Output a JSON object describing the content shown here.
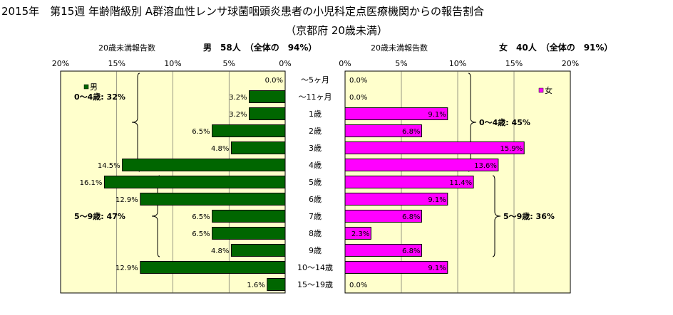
{
  "title": "2015年　第15週 年齢階級別 A群溶血性レンサ球菌咽頭炎患者の小児科定点医療機関からの報告割合",
  "subtitle": "（京都府 20歳未満）",
  "colors": {
    "male": "#006600",
    "female": "#ff00ff",
    "plot_bg": "#ffffcc"
  },
  "chart_data": [
    {
      "type": "bar",
      "orientation": "horizontal",
      "direction": "leftward",
      "xlabel": "20歳未満報告数",
      "summary_label": "男　58人　（全体の　94%）",
      "legend": "男",
      "legend_position": "top-left",
      "xlim": [
        0,
        20
      ],
      "ticks": [
        "0%",
        "5%",
        "10%",
        "15%",
        "20%"
      ],
      "tick_values": [
        0,
        5,
        10,
        15,
        20
      ],
      "categories": [
        "〜5ヶ月",
        "〜11ヶ月",
        "1歳",
        "2歳",
        "3歳",
        "4歳",
        "5歳",
        "6歳",
        "7歳",
        "8歳",
        "9歳",
        "10〜14歳",
        "15〜19歳"
      ],
      "series": [
        {
          "name": "男",
          "values": [
            0.0,
            3.2,
            3.2,
            6.5,
            4.8,
            14.5,
            16.1,
            12.9,
            6.5,
            6.5,
            4.8,
            12.9,
            1.6
          ]
        }
      ],
      "data_labels": [
        "0.0%",
        "3.2%",
        "3.2%",
        "6.5%",
        "4.8%",
        "14.5%",
        "16.1%",
        "12.9%",
        "6.5%",
        "6.5%",
        "4.8%",
        "12.9%",
        "1.6%"
      ],
      "annotations": [
        {
          "text": "0〜4歳: 32%",
          "from_category": "〜5ヶ月",
          "to_category": "4歳"
        },
        {
          "text": "5〜9歳: 47%",
          "from_category": "5歳",
          "to_category": "9歳"
        }
      ]
    },
    {
      "type": "bar",
      "orientation": "horizontal",
      "direction": "rightward",
      "xlabel": "20歳未満報告数",
      "summary_label": "女　40人　（全体の　91%）",
      "legend": "女",
      "legend_position": "top-right",
      "xlim": [
        0,
        20
      ],
      "ticks": [
        "0%",
        "5%",
        "10%",
        "15%",
        "20%"
      ],
      "tick_values": [
        0,
        5,
        10,
        15,
        20
      ],
      "categories": [
        "〜5ヶ月",
        "〜11ヶ月",
        "1歳",
        "2歳",
        "3歳",
        "4歳",
        "5歳",
        "6歳",
        "7歳",
        "8歳",
        "9歳",
        "10〜14歳",
        "15〜19歳"
      ],
      "series": [
        {
          "name": "女",
          "values": [
            0.0,
            0.0,
            9.1,
            6.8,
            15.9,
            13.6,
            11.4,
            9.1,
            6.8,
            2.3,
            6.8,
            9.1,
            0.0
          ]
        }
      ],
      "data_labels": [
        "0.0%",
        "0.0%",
        "9.1%",
        "6.8%",
        "15.9%",
        "13.6%",
        "11.4%",
        "9.1%",
        "6.8%",
        "2.3%",
        "6.8%",
        "9.1%",
        "0.0%"
      ],
      "annotations": [
        {
          "text": "0〜4歳: 45%",
          "from_category": "〜5ヶ月",
          "to_category": "4歳"
        },
        {
          "text": "5〜9歳: 36%",
          "from_category": "5歳",
          "to_category": "9歳"
        }
      ]
    }
  ]
}
